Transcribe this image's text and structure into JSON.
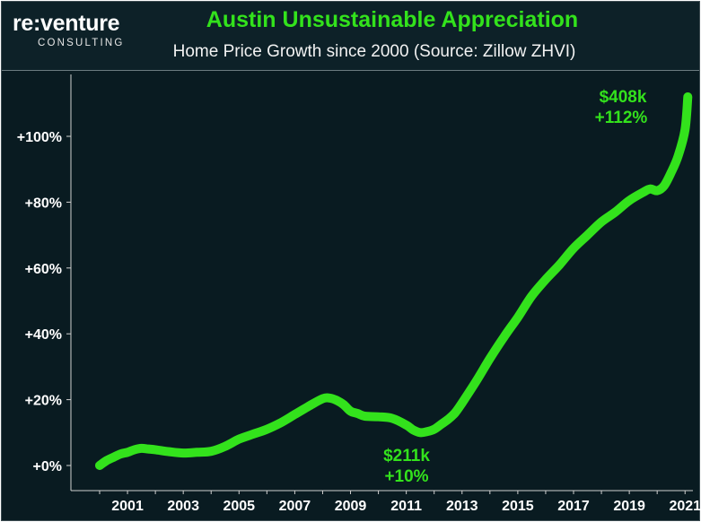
{
  "logo": {
    "main": "re:venture",
    "sub": "CONSULTING"
  },
  "colors": {
    "accent": "#33e21c",
    "background": "#091b21",
    "text": "#ffffff"
  },
  "chart_data": {
    "type": "line",
    "title": "Austin Unsustainable Appreciation",
    "subtitle": "Home Price Growth since 2000 (Source: Zillow ZHVI)",
    "xlabel": "",
    "ylabel": "",
    "xlim": [
      2000.0,
      2021.25
    ],
    "ylim": [
      -6,
      116
    ],
    "grid": false,
    "y_tick_values": [
      0,
      20,
      40,
      60,
      80,
      100
    ],
    "y_tick_labels": [
      "+0%",
      "+20%",
      "+40%",
      "+60%",
      "+80%",
      "+100%"
    ],
    "x_tick_values": [
      2001,
      2003,
      2005,
      2007,
      2009,
      2011,
      2013,
      2015,
      2017,
      2019,
      2021
    ],
    "x_tick_labels": [
      "2001",
      "2003",
      "2005",
      "2007",
      "2009",
      "2011",
      "2013",
      "2015",
      "2017",
      "2019",
      "2021"
    ],
    "series": [
      {
        "x": [
          2000.0,
          2000.25,
          2000.5,
          2000.75,
          2001.0,
          2001.25,
          2001.5,
          2001.75,
          2002.0,
          2002.5,
          2003.0,
          2003.5,
          2004.0,
          2004.5,
          2005.0,
          2005.5,
          2006.0,
          2006.5,
          2007.0,
          2007.5,
          2008.0,
          2008.25,
          2008.5,
          2008.75,
          2009.0,
          2009.25,
          2009.5,
          2010.0,
          2010.5,
          2011.0,
          2011.25,
          2011.5,
          2011.75,
          2012.0,
          2012.25,
          2012.5,
          2012.75,
          2013.0,
          2013.5,
          2014.0,
          2014.5,
          2015.0,
          2015.5,
          2016.0,
          2016.5,
          2017.0,
          2017.5,
          2018.0,
          2018.5,
          2019.0,
          2019.5,
          2019.75,
          2020.0,
          2020.25,
          2020.5,
          2020.75,
          2021.0,
          2021.1
        ],
        "values": [
          0.0,
          1.5,
          2.5,
          3.5,
          4.0,
          4.8,
          5.2,
          5.0,
          4.8,
          4.2,
          3.8,
          4.0,
          4.3,
          5.8,
          8.0,
          9.5,
          11.0,
          13.0,
          15.5,
          18.0,
          20.3,
          20.5,
          19.8,
          18.5,
          16.5,
          15.8,
          15.0,
          14.8,
          14.3,
          12.3,
          10.8,
          10.0,
          10.3,
          11.0,
          12.5,
          14.0,
          16.0,
          19.0,
          25.5,
          32.5,
          39.0,
          45.0,
          51.5,
          56.5,
          61.0,
          66.0,
          70.0,
          74.0,
          77.0,
          80.5,
          83.0,
          84.0,
          83.5,
          85.0,
          89.0,
          94.0,
          102.0,
          112.0
        ]
      }
    ],
    "annotations": [
      {
        "x": 2011.6,
        "y": 10,
        "value": "$211k",
        "pct": "+10%"
      },
      {
        "x": 2021.1,
        "y": 112,
        "value": "$408k",
        "pct": "+112%"
      }
    ]
  }
}
